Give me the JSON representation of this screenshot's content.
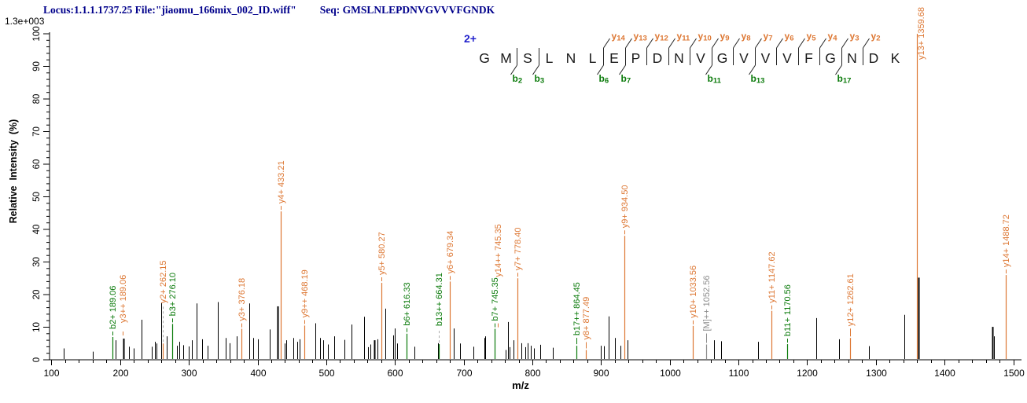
{
  "header": {
    "locus_file": "Locus:1.1.1.1737.25 File:\"jiaomu_166mix_002_ID.wiff\"",
    "seq_label": "Seq: GMSLNLEPDNVGVVVFGNDK",
    "max_intensity": "1.3e+003"
  },
  "sequence_panel": {
    "charge_label": "2+",
    "residues": "GMSLNLEPDNVGVVVFGNDK",
    "cleavages": [
      {
        "after": 2,
        "b": "b2"
      },
      {
        "after": 3,
        "b": "b3"
      },
      {
        "after": 6,
        "b": "b6",
        "y": "y14"
      },
      {
        "after": 7,
        "b": "b7",
        "y": "y13"
      },
      {
        "after": 8,
        "y": "y12"
      },
      {
        "after": 9,
        "y": "y11"
      },
      {
        "after": 10,
        "y": "y10"
      },
      {
        "after": 11,
        "b": "b11",
        "y": "y9"
      },
      {
        "after": 12,
        "y": "y8"
      },
      {
        "after": 13,
        "b": "b13",
        "y": "y7"
      },
      {
        "after": 14,
        "y": "y6"
      },
      {
        "after": 15,
        "y": "y5"
      },
      {
        "after": 16,
        "y": "y4"
      },
      {
        "after": 17,
        "b": "b17",
        "y": "y3"
      },
      {
        "after": 18,
        "y": "y2"
      }
    ]
  },
  "axes": {
    "x": {
      "label": "m/z",
      "min": 97,
      "max": 1512,
      "major_step": 100,
      "minor_step": 20,
      "first_major": 100,
      "last_major": 1500
    },
    "y": {
      "label": "Relative  Intensity  (%)",
      "min": 0,
      "max": 100,
      "major_step": 10,
      "minor_step": 2,
      "max_absolute_intensity": "1.3e+003"
    }
  },
  "colors": {
    "y_ion": "#DD7733",
    "b_ion": "#0A7A0A",
    "precursor": "#8C8C8C",
    "unassigned": "#000000",
    "header_navy": "#00008B",
    "charge_blue": "#2222CC"
  },
  "chart_data": {
    "type": "bar",
    "subtype": "ms2-stick-spectrum",
    "title": "",
    "xlabel": "m/z",
    "ylabel": "Relative  Intensity  (%)",
    "xlim": [
      97,
      1512
    ],
    "ylim": [
      0,
      100
    ],
    "grid": false,
    "labeled_peaks": [
      {
        "label": "b2+ 189.06",
        "mz": 189.06,
        "pct": 7,
        "series": "b"
      },
      {
        "label": "y3++ 189.06",
        "mz": 189.06,
        "pct": 7,
        "series": "y",
        "no_line": true,
        "dx": 13,
        "raise": 8
      },
      {
        "label": "y2+ 262.15",
        "mz": 262.15,
        "pct": 5,
        "series": "y",
        "leader": 46,
        "dashed": true
      },
      {
        "label": "b3+ 276.10",
        "mz": 276.1,
        "pct": 11,
        "series": "b"
      },
      {
        "label": "y3+ 376.18",
        "mz": 376.18,
        "pct": 9.5,
        "series": "y"
      },
      {
        "label": "y4+ 433.21",
        "mz": 433.21,
        "pct": 45.5,
        "series": "y"
      },
      {
        "label": "y9++ 468.19",
        "mz": 468.19,
        "pct": 10.5,
        "series": "y"
      },
      {
        "label": "y5+ 580.27",
        "mz": 580.27,
        "pct": 23.6,
        "series": "y"
      },
      {
        "label": "b6+ 616.33",
        "mz": 616.33,
        "pct": 8,
        "series": "b"
      },
      {
        "label": "b13++ 664.31",
        "mz": 664.31,
        "pct": 4.8,
        "series": "b",
        "leader": 18,
        "dashed": true
      },
      {
        "label": "y6+ 679.34",
        "mz": 679.34,
        "pct": 24,
        "series": "y"
      },
      {
        "label": "y14++ 745.35",
        "mz": 745.35,
        "pct": 9.5,
        "series": "y",
        "no_line": true,
        "dx": 4,
        "raise": 56
      },
      {
        "label": "b7+ 745.35",
        "mz": 745.35,
        "pct": 9.5,
        "series": "b"
      },
      {
        "label": "y7+ 778.40",
        "mz": 778.4,
        "pct": 25,
        "series": "y"
      },
      {
        "label": "b17++ 864.45",
        "mz": 864.45,
        "pct": 4.3,
        "series": "b",
        "leader": 8
      },
      {
        "label": "y8+ 877.49",
        "mz": 877.49,
        "pct": 3,
        "series": "y",
        "leader": 8
      },
      {
        "label": "y9+ 934.50",
        "mz": 934.5,
        "pct": 38,
        "series": "y"
      },
      {
        "label": "y10+ 1033.56",
        "mz": 1033.56,
        "pct": 10.4,
        "series": "y"
      },
      {
        "label": "[M]++ 1052.56",
        "mz": 1052.56,
        "pct": 4.7,
        "series": "M",
        "leader": 12
      },
      {
        "label": "y11+ 1147.62",
        "mz": 1147.62,
        "pct": 15,
        "series": "y"
      },
      {
        "label": "b11+ 1170.56",
        "mz": 1170.56,
        "pct": 4.8,
        "series": "b"
      },
      {
        "label": "y12+ 1262.61",
        "mz": 1262.61,
        "pct": 6.7,
        "series": "y",
        "leader": 10
      },
      {
        "label": "y13+ 1359.68",
        "mz": 1359.68,
        "pct": 100,
        "series": "y",
        "dx": 5,
        "label_bottom": 76
      },
      {
        "label": "y14+ 1488.72",
        "mz": 1488.72,
        "pct": 26,
        "series": "y"
      }
    ],
    "unlabeled_peaks": [
      [
        118,
        3.5
      ],
      [
        160,
        2.5
      ],
      [
        193.4,
        6
      ],
      [
        204.8,
        6.5,
        2
      ],
      [
        212.8,
        4
      ],
      [
        219.7,
        3.5
      ],
      [
        231.2,
        12.3
      ],
      [
        246,
        4
      ],
      [
        250.6,
        5.5
      ],
      [
        253.4,
        5
      ],
      [
        260.3,
        17.6
      ],
      [
        267.4,
        7.2
      ],
      [
        282.6,
        4.3
      ],
      [
        286,
        5.5
      ],
      [
        291.8,
        4.5
      ],
      [
        299.8,
        4.1
      ],
      [
        304.4,
        6
      ],
      [
        311.2,
        17.3
      ],
      [
        319.2,
        6.3
      ],
      [
        327.3,
        4.3
      ],
      [
        342,
        17.7
      ],
      [
        353.6,
        6.7
      ],
      [
        359.4,
        5.1
      ],
      [
        369.7,
        7.2
      ],
      [
        388,
        17.3
      ],
      [
        393.3,
        6.7
      ],
      [
        400.5,
        6.3
      ],
      [
        417.7,
        9.3
      ],
      [
        428.8,
        16.4,
        2
      ],
      [
        439.1,
        5
      ],
      [
        441.5,
        6
      ],
      [
        452,
        6.7
      ],
      [
        457.7,
        5.5
      ],
      [
        460.8,
        6.3
      ],
      [
        484.2,
        11.2
      ],
      [
        490.6,
        6.7
      ],
      [
        495.6,
        6
      ],
      [
        502.7,
        4.7
      ],
      [
        511.6,
        7.2
      ],
      [
        526.7,
        6.1
      ],
      [
        536.4,
        10.8
      ],
      [
        555.4,
        13.2
      ],
      [
        560.3,
        3.9
      ],
      [
        564,
        4.7
      ],
      [
        570.5,
        6,
        2
      ],
      [
        574.5,
        6.3
      ],
      [
        585.8,
        15.7
      ],
      [
        597.5,
        7.5
      ],
      [
        600.1,
        9.6
      ],
      [
        603,
        5
      ],
      [
        628,
        4
      ],
      [
        662.3,
        5.1
      ],
      [
        685.2,
        9.6
      ],
      [
        694.7,
        5
      ],
      [
        713.8,
        4
      ],
      [
        730.2,
        6.7
      ],
      [
        731.9,
        7.2
      ],
      [
        761.1,
        3
      ],
      [
        764.2,
        11.6
      ],
      [
        767.2,
        3.9
      ],
      [
        772.9,
        6
      ],
      [
        784.3,
        5.1
      ],
      [
        789.4,
        3.9
      ],
      [
        793.1,
        5.1
      ],
      [
        797.7,
        4.3
      ],
      [
        802.3,
        3.5
      ],
      [
        811.5,
        4.6
      ],
      [
        829.8,
        3.7
      ],
      [
        900,
        4.3
      ],
      [
        904.5,
        4.2
      ],
      [
        911.1,
        13.3
      ],
      [
        919.9,
        6.7
      ],
      [
        928.6,
        4.3
      ],
      [
        938,
        6
      ],
      [
        1064.8,
        6
      ],
      [
        1074.4,
        5.7
      ],
      [
        1128.9,
        5.5
      ],
      [
        1212.9,
        12.8
      ],
      [
        1246.1,
        6.3
      ],
      [
        1290,
        4.2
      ],
      [
        1341.5,
        13.8
      ],
      [
        1361.6,
        25.2,
        2
      ],
      [
        1469.4,
        10.1,
        2
      ],
      [
        1472,
        7.2
      ]
    ]
  }
}
